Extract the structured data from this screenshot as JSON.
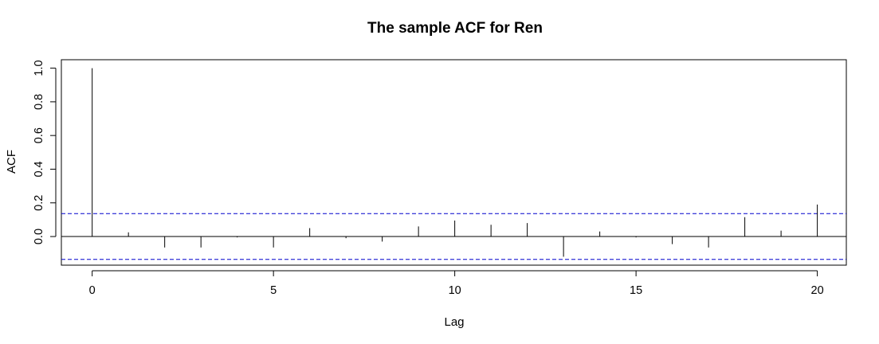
{
  "chart_data": {
    "type": "bar",
    "subtype": "acf-stem",
    "title": "The sample ACF for Ren",
    "xlabel": "Lag",
    "ylabel": "ACF",
    "xlim": [
      -0.85,
      20.8
    ],
    "ylim": [
      -0.17,
      1.05
    ],
    "x_ticks": [
      0,
      5,
      10,
      15,
      20
    ],
    "y_ticks": [
      0.0,
      0.2,
      0.4,
      0.6,
      0.8,
      1.0
    ],
    "x_tick_labels": [
      "0",
      "5",
      "10",
      "15",
      "20"
    ],
    "y_tick_labels": [
      "0.0",
      "0.2",
      "0.4",
      "0.6",
      "0.8",
      "1.0"
    ],
    "grid": false,
    "lags": [
      0,
      1,
      2,
      3,
      4,
      5,
      6,
      7,
      8,
      9,
      10,
      11,
      12,
      13,
      14,
      15,
      16,
      17,
      18,
      19,
      20
    ],
    "values": [
      1.0,
      0.025,
      -0.065,
      -0.065,
      -0.005,
      -0.065,
      0.05,
      -0.01,
      -0.03,
      0.06,
      0.095,
      0.07,
      0.08,
      -0.12,
      0.03,
      -0.005,
      -0.045,
      -0.065,
      0.115,
      0.035,
      0.19
    ],
    "confidence_bound": 0.136,
    "colors": {
      "stems": "#000000",
      "confidence": "#0000CD",
      "zero_line": "#000000"
    }
  }
}
